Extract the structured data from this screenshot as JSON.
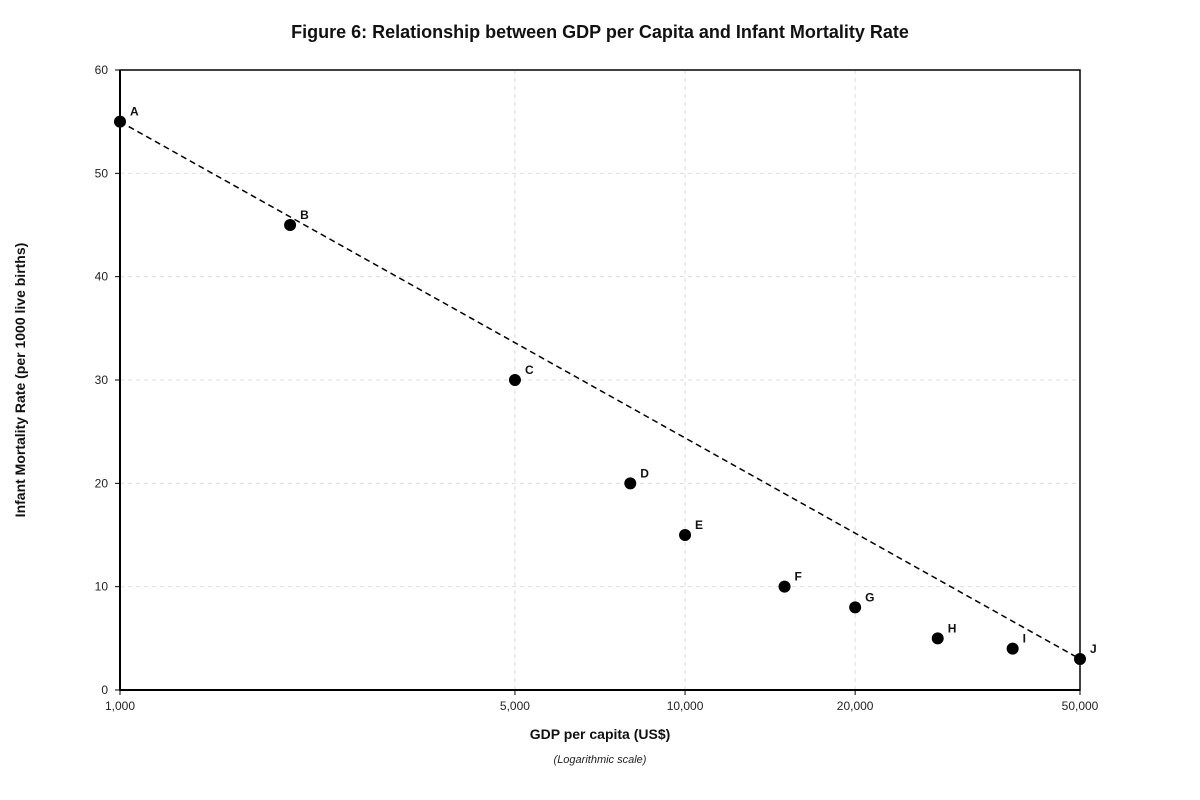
{
  "chart_data": {
    "type": "scatter",
    "title": "Figure 6: Relationship between GDP per Capita and Infant Mortality Rate",
    "xlabel": "GDP per capita (US$)",
    "xlabel_note": "(Logarithmic scale)",
    "ylabel": "Infant Mortality Rate (per 1000 live births)",
    "x_scale": "log",
    "xlim": [
      1000,
      50000
    ],
    "ylim": [
      0,
      60
    ],
    "x_ticks": [
      1000,
      5000,
      10000,
      20000,
      50000
    ],
    "x_tick_labels": [
      "1,000",
      "5,000",
      "10,000",
      "20,000",
      "50,000"
    ],
    "y_ticks": [
      0,
      10,
      20,
      30,
      40,
      50,
      60
    ],
    "y_tick_labels": [
      "0",
      "10",
      "20",
      "30",
      "40",
      "50",
      "60"
    ],
    "grid": true,
    "legend": "none",
    "marker_color": "#000000",
    "points": [
      {
        "label": "A",
        "x": 1000,
        "y": 55
      },
      {
        "label": "B",
        "x": 2000,
        "y": 45
      },
      {
        "label": "C",
        "x": 5000,
        "y": 30
      },
      {
        "label": "D",
        "x": 8000,
        "y": 20
      },
      {
        "label": "E",
        "x": 10000,
        "y": 15
      },
      {
        "label": "F",
        "x": 15000,
        "y": 10
      },
      {
        "label": "G",
        "x": 20000,
        "y": 8
      },
      {
        "label": "H",
        "x": 28000,
        "y": 5
      },
      {
        "label": "I",
        "x": 38000,
        "y": 4
      },
      {
        "label": "J",
        "x": 50000,
        "y": 3
      }
    ],
    "trend_line": {
      "style": "dashed",
      "from": {
        "x": 1000,
        "y": 55
      },
      "to": {
        "x": 50000,
        "y": 3
      }
    }
  }
}
